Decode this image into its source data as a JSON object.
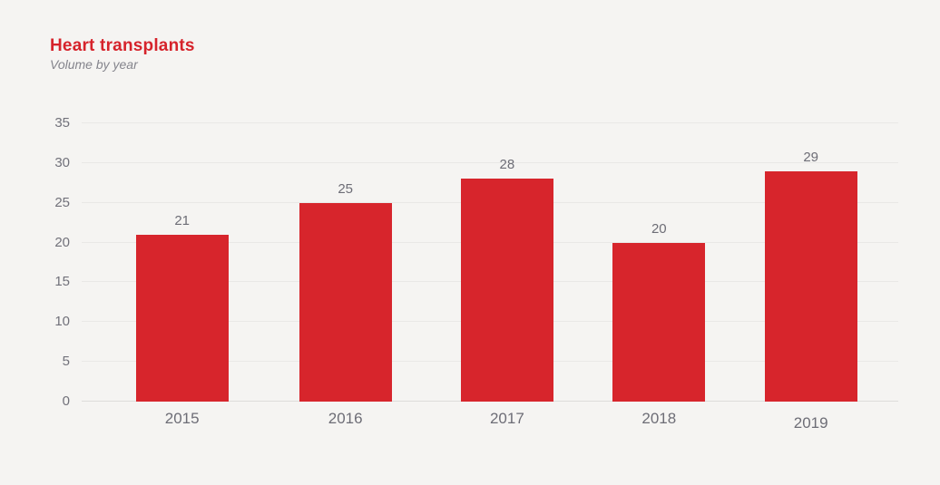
{
  "header": {
    "title": "Heart transplants",
    "subtitle": "Volume by year"
  },
  "chart_data": {
    "type": "bar",
    "title": "Heart transplants",
    "subtitle": "Volume by year",
    "categories": [
      "2015",
      "2016",
      "2017",
      "2018",
      "2019"
    ],
    "values": [
      21,
      25,
      28,
      20,
      29
    ],
    "data_labels_shown": true,
    "xlabel": "",
    "ylabel": "",
    "ylim": [
      0,
      35
    ],
    "yticks": [
      0,
      5,
      10,
      15,
      20,
      25,
      30,
      35
    ],
    "grid": true,
    "legend_position": "none",
    "colors": {
      "bar": "#d7252c",
      "title": "#d6232b",
      "background": "#f5f4f2",
      "grid_line": "#e9e8e6",
      "axis_text": "#71717a",
      "value_label_text": "#6d6d76",
      "subtitle_text": "#84848c"
    }
  }
}
